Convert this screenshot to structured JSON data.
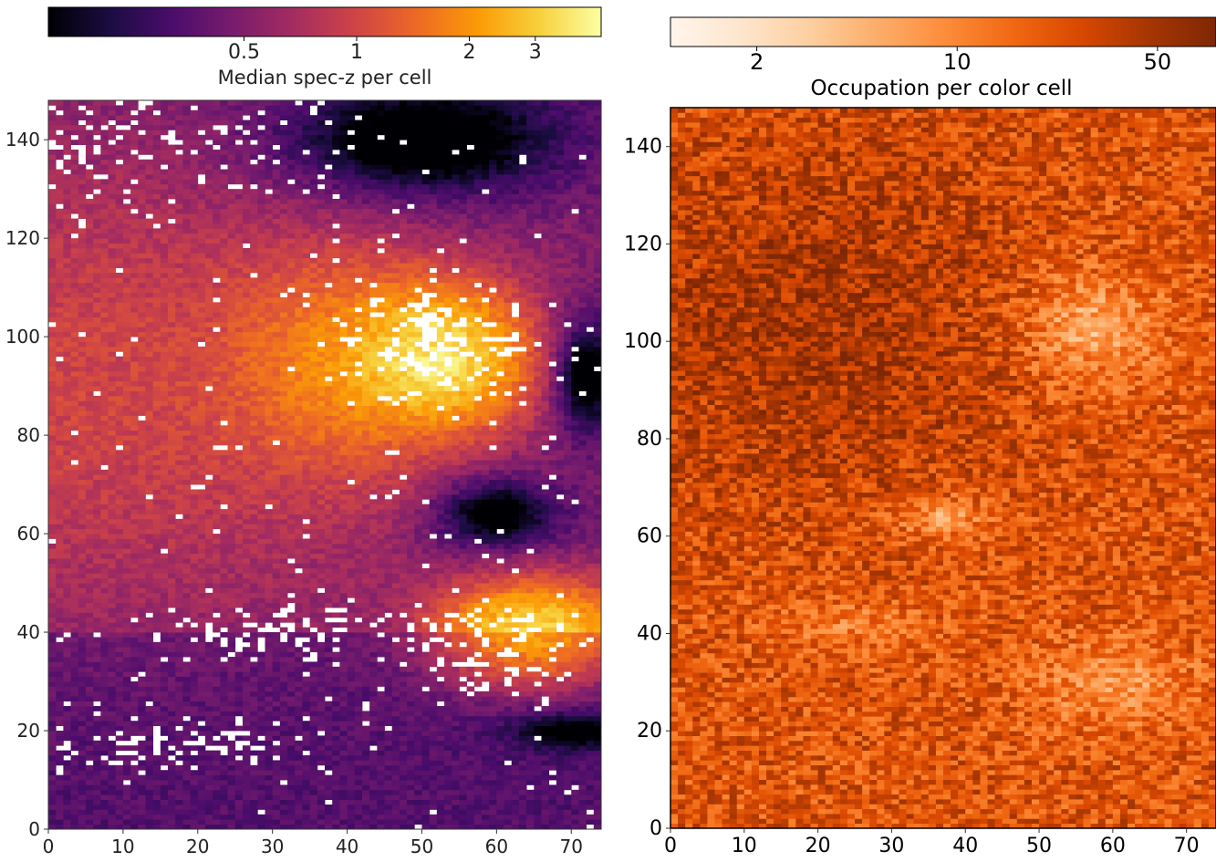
{
  "chart_data": [
    {
      "type": "heatmap",
      "title": "",
      "xlabel": "",
      "ylabel": "",
      "xlim": [
        0,
        74
      ],
      "ylim": [
        0,
        148
      ],
      "x_ticks": [
        "0",
        "10",
        "20",
        "30",
        "40",
        "50",
        "60",
        "70"
      ],
      "y_ticks": [
        "0",
        "20",
        "40",
        "60",
        "80",
        "100",
        "120",
        "140"
      ],
      "colorbar": {
        "label": "Median spec-z per cell",
        "location": "top",
        "scale": "log",
        "colormap": "inferno",
        "range": [
          0.15,
          4.5
        ],
        "ticks": [
          "0.5",
          "1",
          "2",
          "3"
        ],
        "colors": [
          "#000004",
          "#1b0c41",
          "#4a0c6b",
          "#781c6d",
          "#a52c60",
          "#cf4446",
          "#ed6925",
          "#fb9b06",
          "#f7d13d",
          "#fcffa4"
        ]
      },
      "missing_color": "#ffffff",
      "zones": [
        {
          "region": "left half, y 40-120",
          "approx_median_z": 0.8,
          "description": "purple to magenta gradient"
        },
        {
          "region": "center-right, y 80-125",
          "approx_median_z": 2.0,
          "description": "orange core"
        },
        {
          "region": "right, y 85-110",
          "approx_median_z": 3.5,
          "description": "pale yellow with many empty cells"
        },
        {
          "region": "upper right, y 120-148",
          "approx_median_z": 0.3,
          "description": "dark purple"
        },
        {
          "region": "right edge, y 80-105",
          "approx_median_z": 0.15,
          "description": "near-black"
        },
        {
          "region": "right, y 50-75",
          "approx_median_z": 0.3,
          "description": "dark purple"
        },
        {
          "region": "lower right, y 25-55",
          "approx_median_z": 3.5,
          "description": "yellow band"
        },
        {
          "region": "bottom right corner, y 15-30",
          "approx_median_z": 0.15,
          "description": "black diagonal band"
        },
        {
          "region": "bottom, y 0-40",
          "approx_median_z": 0.4,
          "description": "dark purple with white empty band"
        }
      ]
    },
    {
      "type": "heatmap",
      "title": "",
      "xlabel": "",
      "ylabel": "",
      "xlim": [
        0,
        74
      ],
      "ylim": [
        0,
        148
      ],
      "x_ticks": [
        "0",
        "10",
        "20",
        "30",
        "40",
        "50",
        "60",
        "70"
      ],
      "y_ticks": [
        "0",
        "20",
        "40",
        "60",
        "80",
        "100",
        "120",
        "140"
      ],
      "colorbar": {
        "label": "Occupation per color cell",
        "location": "top",
        "scale": "log",
        "colormap": "oranges",
        "range": [
          1,
          80
        ],
        "ticks": [
          "2",
          "10",
          "50"
        ],
        "colors": [
          "#fff5eb",
          "#fee6ce",
          "#fdd0a2",
          "#fdae6b",
          "#fd8d3c",
          "#f16913",
          "#d94801",
          "#a63603",
          "#7f2704"
        ]
      },
      "zones": [
        {
          "region": "left and center, y 80-148",
          "approx_occupation": 40,
          "description": "dark orange-brown, densely populated"
        },
        {
          "region": "right, y 85-120",
          "approx_occupation": 6,
          "description": "light patch"
        },
        {
          "region": "center, y 55-70",
          "approx_occupation": 5,
          "description": "light patch"
        },
        {
          "region": "lower right, y 20-45",
          "approx_occupation": 5,
          "description": "light patch"
        },
        {
          "region": "bottom, y 0-55",
          "approx_occupation": 15,
          "description": "medium orange"
        }
      ]
    }
  ]
}
